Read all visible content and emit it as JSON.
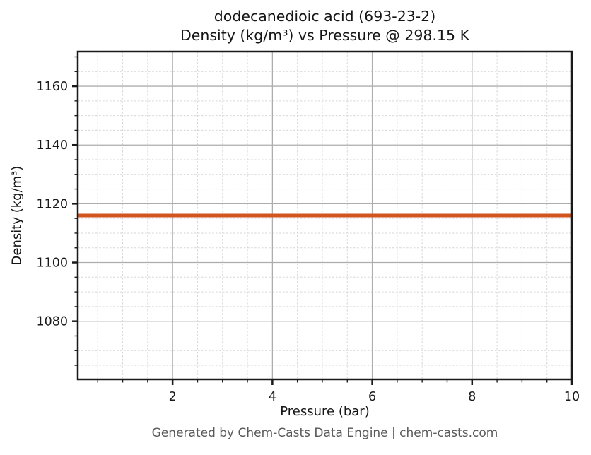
{
  "title": {
    "line1": "dodecanedioic acid (693-23-2)",
    "line2": "Density (kg/m³) vs Pressure @ 298.15 K"
  },
  "footer": {
    "text": "Generated by Chem-Casts Data Engine | chem-casts.com"
  },
  "colors": {
    "line": "#d2541e",
    "grid_major": "#adadad",
    "grid_minor": "#d6d6d6",
    "spine": "#1a1a1a",
    "tick": "#1a1a1a",
    "text": "#1a1a1a",
    "footer_text": "#595959"
  },
  "chart_data": {
    "type": "line",
    "title": "dodecanedioic acid (693-23-2)\nDensity (kg/m³) vs Pressure @ 298.15 K",
    "xlabel": "Pressure (bar)",
    "ylabel": "Density (kg/m³)",
    "series": [
      {
        "name": "density-vs-pressure",
        "x": [
          0.1,
          10
        ],
        "y": [
          1116,
          1116
        ],
        "color": "#d2541e",
        "linewidth": 5,
        "note": "constant density ~1116 kg/m3 across 0.1-10 bar at 298.15 K"
      }
    ],
    "xlim": [
      0.1,
      10
    ],
    "ylim": [
      1060.2,
      1171.8
    ],
    "xticks": [
      2,
      4,
      6,
      8,
      10
    ],
    "yticks": [
      1080,
      1100,
      1120,
      1140,
      1160
    ],
    "x_minor_step": 0.5,
    "y_minor_step": 5,
    "grid": {
      "major": true,
      "minor": true,
      "minor_style": "dashed"
    },
    "legend": "none"
  }
}
